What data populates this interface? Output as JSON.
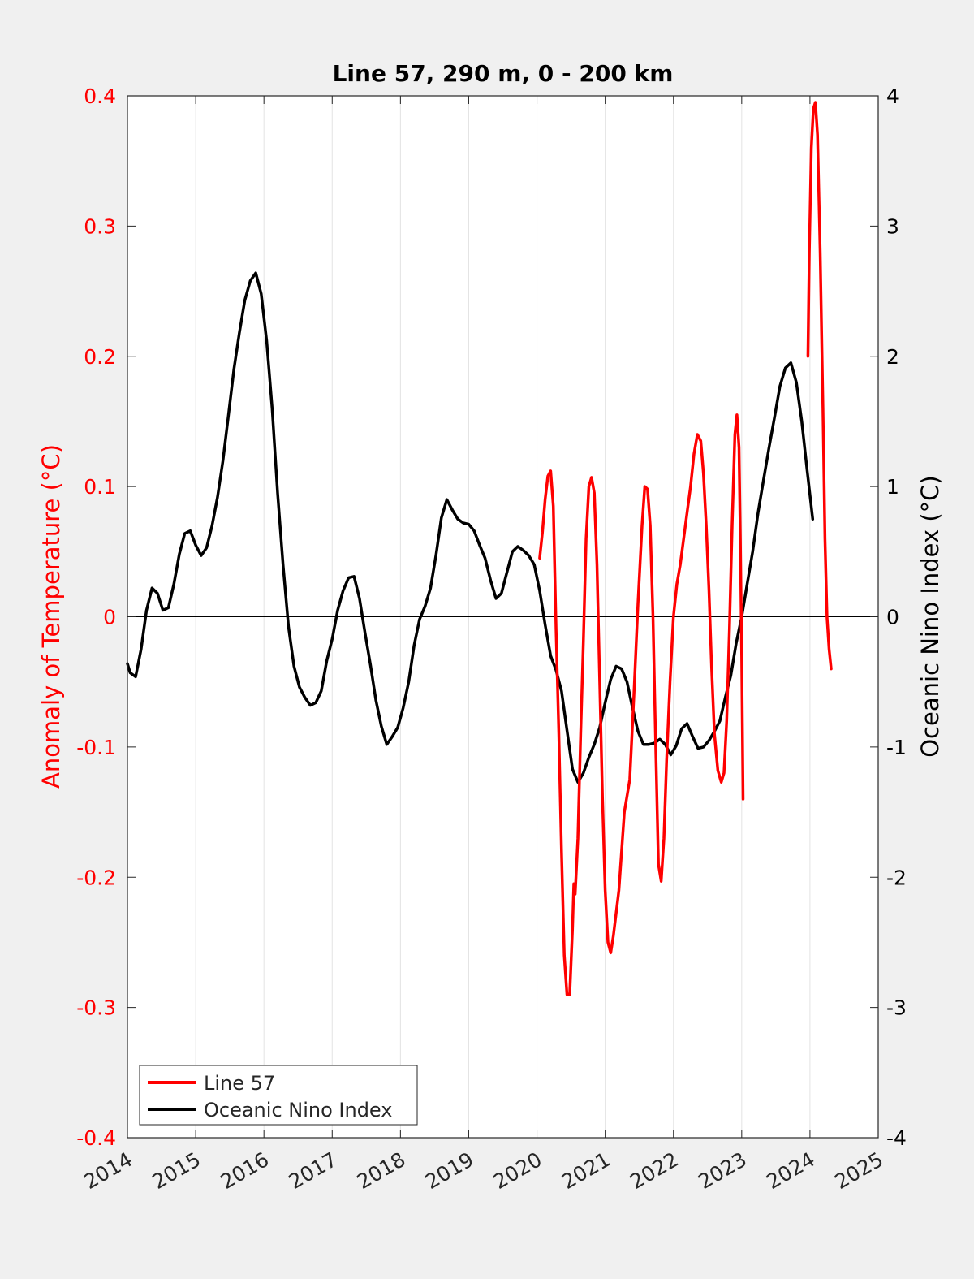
{
  "chart_data": {
    "type": "line",
    "title": "Line 57, 290 m, 0 - 200 km",
    "ylabel_left": "Anomaly of Temperature (°C)",
    "ylabel_right": "Oceanic Nino Index (°C)",
    "xlim": [
      2014,
      2025
    ],
    "ylim_left": [
      -0.4,
      0.4
    ],
    "ylim_right": [
      -4,
      4
    ],
    "x_ticks": [
      "2014",
      "2015",
      "2016",
      "2017",
      "2018",
      "2019",
      "2020",
      "2021",
      "2022",
      "2023",
      "2024",
      "2025"
    ],
    "y_ticks_left": [
      "-0.4",
      "-0.3",
      "-0.2",
      "-0.1",
      "0",
      "0.1",
      "0.2",
      "0.3",
      "0.4"
    ],
    "y_ticks_right": [
      "-4",
      "-3",
      "-2",
      "-1",
      "0",
      "1",
      "2",
      "3",
      "4"
    ],
    "grid": "vertical",
    "zero_line": true,
    "legend_position": "bottom-left",
    "colors": {
      "line57": "#ff0000",
      "oni": "#000000",
      "left_axis": "#ff0000",
      "right_axis": "#000000"
    },
    "series": [
      {
        "name": "Line 57",
        "axis": "left",
        "segments": [
          [
            [
              2020.04,
              0.045
            ],
            [
              2020.08,
              0.065
            ],
            [
              2020.12,
              0.09
            ],
            [
              2020.16,
              0.108
            ],
            [
              2020.2,
              0.112
            ],
            [
              2020.24,
              0.085
            ],
            [
              2020.28,
              -0.01
            ],
            [
              2020.32,
              -0.09
            ],
            [
              2020.36,
              -0.18
            ],
            [
              2020.4,
              -0.26
            ],
            [
              2020.44,
              -0.29
            ],
            [
              2020.48,
              -0.29
            ],
            [
              2020.52,
              -0.24
            ],
            [
              2020.54,
              -0.205
            ],
            [
              2020.56,
              -0.213
            ],
            [
              2020.6,
              -0.17
            ],
            [
              2020.64,
              -0.09
            ],
            [
              2020.68,
              -0.02
            ],
            [
              2020.72,
              0.06
            ],
            [
              2020.76,
              0.1
            ],
            [
              2020.8,
              0.107
            ],
            [
              2020.84,
              0.095
            ],
            [
              2020.88,
              0.04
            ],
            [
              2020.92,
              -0.05
            ],
            [
              2020.96,
              -0.14
            ],
            [
              2021.0,
              -0.21
            ],
            [
              2021.04,
              -0.25
            ],
            [
              2021.08,
              -0.258
            ],
            [
              2021.12,
              -0.245
            ],
            [
              2021.2,
              -0.21
            ],
            [
              2021.28,
              -0.15
            ],
            [
              2021.36,
              -0.125
            ],
            [
              2021.42,
              -0.06
            ],
            [
              2021.48,
              0.01
            ],
            [
              2021.54,
              0.07
            ],
            [
              2021.58,
              0.1
            ],
            [
              2021.62,
              0.098
            ],
            [
              2021.66,
              0.07
            ],
            [
              2021.7,
              0.0
            ],
            [
              2021.74,
              -0.1
            ],
            [
              2021.78,
              -0.19
            ],
            [
              2021.82,
              -0.203
            ],
            [
              2021.86,
              -0.17
            ],
            [
              2021.9,
              -0.11
            ],
            [
              2021.95,
              -0.05
            ],
            [
              2022.0,
              0.0
            ],
            [
              2022.05,
              0.025
            ],
            [
              2022.1,
              0.04
            ],
            [
              2022.15,
              0.06
            ],
            [
              2022.2,
              0.08
            ],
            [
              2022.25,
              0.1
            ],
            [
              2022.3,
              0.125
            ],
            [
              2022.35,
              0.14
            ],
            [
              2022.4,
              0.135
            ],
            [
              2022.44,
              0.11
            ],
            [
              2022.48,
              0.07
            ],
            [
              2022.52,
              0.02
            ],
            [
              2022.56,
              -0.04
            ],
            [
              2022.6,
              -0.09
            ],
            [
              2022.65,
              -0.118
            ],
            [
              2022.7,
              -0.127
            ],
            [
              2022.74,
              -0.12
            ],
            [
              2022.78,
              -0.08
            ],
            [
              2022.82,
              -0.01
            ],
            [
              2022.86,
              0.07
            ],
            [
              2022.9,
              0.14
            ],
            [
              2022.93,
              0.155
            ],
            [
              2022.96,
              0.13
            ],
            [
              2022.98,
              0.06
            ],
            [
              2023.0,
              -0.03
            ],
            [
              2023.02,
              -0.14
            ]
          ],
          [
            [
              2023.97,
              0.2
            ],
            [
              2023.99,
              0.28
            ],
            [
              2024.02,
              0.36
            ],
            [
              2024.05,
              0.39
            ],
            [
              2024.08,
              0.395
            ],
            [
              2024.11,
              0.37
            ],
            [
              2024.15,
              0.28
            ],
            [
              2024.19,
              0.16
            ],
            [
              2024.22,
              0.06
            ],
            [
              2024.25,
              0.0
            ],
            [
              2024.28,
              -0.025
            ],
            [
              2024.31,
              -0.04
            ]
          ]
        ]
      },
      {
        "name": "Oceanic Nino Index",
        "axis": "right",
        "points": [
          [
            2014.0,
            -0.36
          ],
          [
            2014.04,
            -0.43
          ],
          [
            2014.12,
            -0.46
          ],
          [
            2014.2,
            -0.25
          ],
          [
            2014.28,
            0.05
          ],
          [
            2014.36,
            0.22
          ],
          [
            2014.44,
            0.18
          ],
          [
            2014.52,
            0.05
          ],
          [
            2014.6,
            0.07
          ],
          [
            2014.68,
            0.25
          ],
          [
            2014.76,
            0.48
          ],
          [
            2014.84,
            0.64
          ],
          [
            2014.92,
            0.66
          ],
          [
            2015.0,
            0.55
          ],
          [
            2015.08,
            0.47
          ],
          [
            2015.16,
            0.53
          ],
          [
            2015.24,
            0.7
          ],
          [
            2015.32,
            0.92
          ],
          [
            2015.4,
            1.2
          ],
          [
            2015.48,
            1.55
          ],
          [
            2015.56,
            1.9
          ],
          [
            2015.64,
            2.18
          ],
          [
            2015.72,
            2.43
          ],
          [
            2015.8,
            2.58
          ],
          [
            2015.88,
            2.64
          ],
          [
            2015.96,
            2.48
          ],
          [
            2016.04,
            2.12
          ],
          [
            2016.12,
            1.6
          ],
          [
            2016.2,
            0.95
          ],
          [
            2016.28,
            0.4
          ],
          [
            2016.36,
            -0.08
          ],
          [
            2016.44,
            -0.38
          ],
          [
            2016.52,
            -0.54
          ],
          [
            2016.6,
            -0.62
          ],
          [
            2016.68,
            -0.68
          ],
          [
            2016.76,
            -0.66
          ],
          [
            2016.84,
            -0.57
          ],
          [
            2016.92,
            -0.34
          ],
          [
            2017.0,
            -0.17
          ],
          [
            2017.08,
            0.05
          ],
          [
            2017.16,
            0.2
          ],
          [
            2017.24,
            0.3
          ],
          [
            2017.32,
            0.31
          ],
          [
            2017.4,
            0.14
          ],
          [
            2017.48,
            -0.12
          ],
          [
            2017.56,
            -0.37
          ],
          [
            2017.64,
            -0.64
          ],
          [
            2017.72,
            -0.84
          ],
          [
            2017.8,
            -0.98
          ],
          [
            2017.88,
            -0.92
          ],
          [
            2017.96,
            -0.85
          ],
          [
            2018.04,
            -0.7
          ],
          [
            2018.12,
            -0.5
          ],
          [
            2018.2,
            -0.22
          ],
          [
            2018.28,
            -0.02
          ],
          [
            2018.36,
            0.08
          ],
          [
            2018.44,
            0.22
          ],
          [
            2018.52,
            0.47
          ],
          [
            2018.6,
            0.76
          ],
          [
            2018.68,
            0.9
          ],
          [
            2018.76,
            0.82
          ],
          [
            2018.84,
            0.75
          ],
          [
            2018.92,
            0.72
          ],
          [
            2019.0,
            0.71
          ],
          [
            2019.08,
            0.66
          ],
          [
            2019.16,
            0.55
          ],
          [
            2019.24,
            0.45
          ],
          [
            2019.32,
            0.28
          ],
          [
            2019.4,
            0.14
          ],
          [
            2019.48,
            0.18
          ],
          [
            2019.56,
            0.34
          ],
          [
            2019.64,
            0.5
          ],
          [
            2019.72,
            0.54
          ],
          [
            2019.8,
            0.51
          ],
          [
            2019.88,
            0.47
          ],
          [
            2019.96,
            0.4
          ],
          [
            2020.04,
            0.2
          ],
          [
            2020.12,
            -0.06
          ],
          [
            2020.2,
            -0.3
          ],
          [
            2020.28,
            -0.41
          ],
          [
            2020.36,
            -0.57
          ],
          [
            2020.44,
            -0.87
          ],
          [
            2020.52,
            -1.17
          ],
          [
            2020.6,
            -1.27
          ],
          [
            2020.68,
            -1.2
          ],
          [
            2020.76,
            -1.08
          ],
          [
            2020.84,
            -0.98
          ],
          [
            2020.92,
            -0.85
          ],
          [
            2021.0,
            -0.66
          ],
          [
            2021.08,
            -0.48
          ],
          [
            2021.16,
            -0.38
          ],
          [
            2021.24,
            -0.4
          ],
          [
            2021.32,
            -0.5
          ],
          [
            2021.4,
            -0.7
          ],
          [
            2021.48,
            -0.88
          ],
          [
            2021.56,
            -0.98
          ],
          [
            2021.64,
            -0.98
          ],
          [
            2021.72,
            -0.97
          ],
          [
            2021.8,
            -0.94
          ],
          [
            2021.88,
            -0.98
          ],
          [
            2021.96,
            -1.06
          ],
          [
            2022.04,
            -0.99
          ],
          [
            2022.12,
            -0.86
          ],
          [
            2022.2,
            -0.82
          ],
          [
            2022.28,
            -0.92
          ],
          [
            2022.36,
            -1.01
          ],
          [
            2022.44,
            -1.0
          ],
          [
            2022.52,
            -0.95
          ],
          [
            2022.6,
            -0.88
          ],
          [
            2022.68,
            -0.8
          ],
          [
            2022.76,
            -0.62
          ],
          [
            2022.84,
            -0.45
          ],
          [
            2022.92,
            -0.2
          ],
          [
            2023.0,
            0.0
          ],
          [
            2023.08,
            0.25
          ],
          [
            2023.16,
            0.5
          ],
          [
            2023.24,
            0.8
          ],
          [
            2023.32,
            1.05
          ],
          [
            2023.4,
            1.3
          ],
          [
            2023.48,
            1.53
          ],
          [
            2023.56,
            1.77
          ],
          [
            2023.64,
            1.91
          ],
          [
            2023.72,
            1.95
          ],
          [
            2023.8,
            1.8
          ],
          [
            2023.88,
            1.5
          ],
          [
            2023.96,
            1.12
          ],
          [
            2024.04,
            0.75
          ]
        ]
      }
    ]
  }
}
